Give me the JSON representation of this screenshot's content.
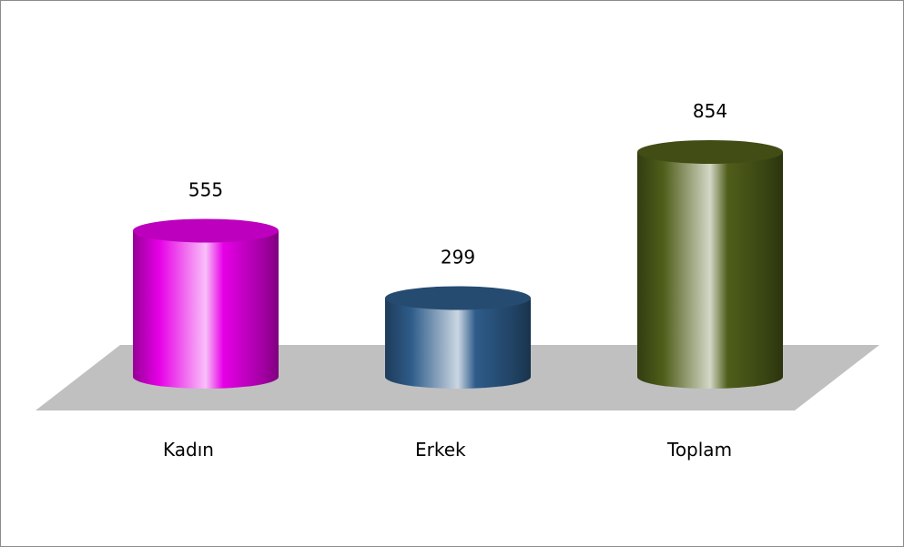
{
  "chart_data": {
    "type": "bar",
    "style": "3d-cylinder",
    "categories": [
      "Kadın",
      "Erkek",
      "Toplam"
    ],
    "values": [
      555,
      299,
      854
    ],
    "data_labels": [
      "555",
      "299",
      "854"
    ],
    "title": "",
    "xlabel": "",
    "ylabel": "",
    "ylim": [
      0,
      1000
    ],
    "grid": false,
    "legend": "none",
    "colors": [
      "#e600e6",
      "#2e5c8a",
      "#4f5e1a"
    ],
    "floor_color": "#c0c0c0"
  }
}
